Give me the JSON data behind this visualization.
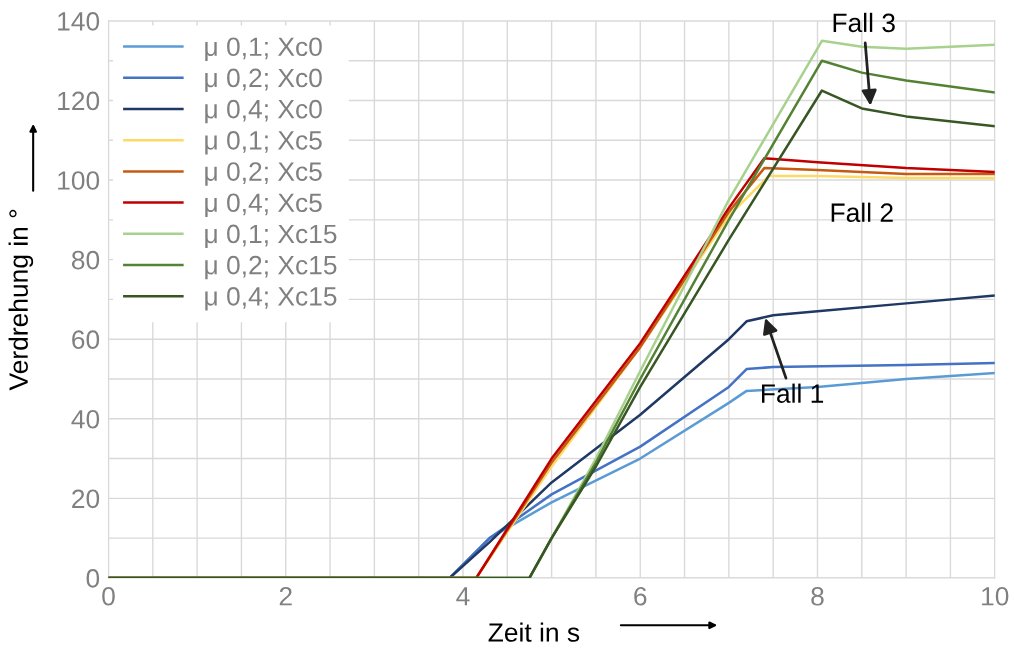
{
  "chart_data": {
    "type": "line",
    "xlabel": "Zeit in s",
    "ylabel": "Verdrehung in °",
    "xlim": [
      0,
      10
    ],
    "ylim": [
      0,
      140
    ],
    "xticks": [
      0,
      2,
      4,
      6,
      8,
      10
    ],
    "yticks": [
      0,
      20,
      40,
      60,
      80,
      100,
      120,
      140
    ],
    "grid": true,
    "legend": "top left",
    "marker": "none",
    "line_style": "solid",
    "series": [
      {
        "name": "μ 0,1; Xc0",
        "color": "#5b9bd5",
        "x": [
          0,
          3.85,
          4.3,
          5,
          6,
          7,
          7.2,
          8,
          9,
          10
        ],
        "values": [
          0,
          0,
          10,
          19,
          30,
          44,
          47,
          48,
          50,
          51.5
        ]
      },
      {
        "name": "μ 0,2; Xc0",
        "color": "#4472c4",
        "x": [
          0,
          3.85,
          4.3,
          5,
          6,
          7,
          7.2,
          7.5,
          9,
          10
        ],
        "values": [
          0,
          0,
          10,
          21,
          33,
          48,
          52.5,
          53,
          53.5,
          54
        ]
      },
      {
        "name": "μ 0,4; Xc0",
        "color": "#1f3864",
        "x": [
          0,
          3.85,
          4.3,
          5,
          6,
          7,
          7.2,
          7.5,
          8,
          9,
          10
        ],
        "values": [
          0,
          0,
          9,
          24,
          41,
          60,
          64.5,
          66,
          67,
          69,
          71
        ]
      },
      {
        "name": "μ 0,1; Xc5",
        "color": "#ffd966",
        "x": [
          0,
          4.15,
          5,
          6,
          7,
          7.45,
          8,
          9,
          10
        ],
        "values": [
          0,
          0,
          28,
          58,
          91,
          101,
          101,
          100.5,
          100.5
        ]
      },
      {
        "name": "μ 0,2; Xc5",
        "color": "#c55a11",
        "x": [
          0,
          4.15,
          5,
          6,
          7,
          7.4,
          8,
          9,
          10
        ],
        "values": [
          0,
          0,
          29,
          58,
          92,
          103,
          102.5,
          101.5,
          101.5
        ]
      },
      {
        "name": "μ 0,4; Xc5",
        "color": "#c00000",
        "x": [
          0,
          4.15,
          5,
          6,
          7,
          7.4,
          8,
          9,
          10
        ],
        "values": [
          0,
          0,
          30,
          59,
          93,
          105.5,
          104.5,
          103,
          102
        ]
      },
      {
        "name": "μ 0,1; Xc15",
        "color": "#a9d18e",
        "x": [
          0,
          4.75,
          5,
          5.5,
          6,
          7,
          8.05,
          8.5,
          9,
          10
        ],
        "values": [
          0,
          0,
          10,
          30,
          52,
          95,
          135,
          133.5,
          133,
          134
        ]
      },
      {
        "name": "μ 0,2; Xc15",
        "color": "#548235",
        "x": [
          0,
          4.75,
          5,
          5.5,
          6,
          7,
          8.05,
          8.5,
          9,
          10
        ],
        "values": [
          0,
          0,
          10,
          29,
          50,
          90,
          130,
          127,
          125,
          122
        ]
      },
      {
        "name": "μ 0,4; Xc15",
        "color": "#375623",
        "x": [
          0,
          4.75,
          5,
          5.5,
          6,
          7,
          8.05,
          8.5,
          9,
          10
        ],
        "values": [
          0,
          0,
          10,
          28,
          48,
          85,
          122.5,
          118,
          116,
          113.5
        ]
      }
    ],
    "annotations": [
      {
        "text": "Fall 1",
        "x": 7.4,
        "y": 66
      },
      {
        "text": "Fall 2",
        "x": 8.5,
        "y": 101
      },
      {
        "text": "Fall 3",
        "x": 8.6,
        "y": 118
      }
    ]
  }
}
